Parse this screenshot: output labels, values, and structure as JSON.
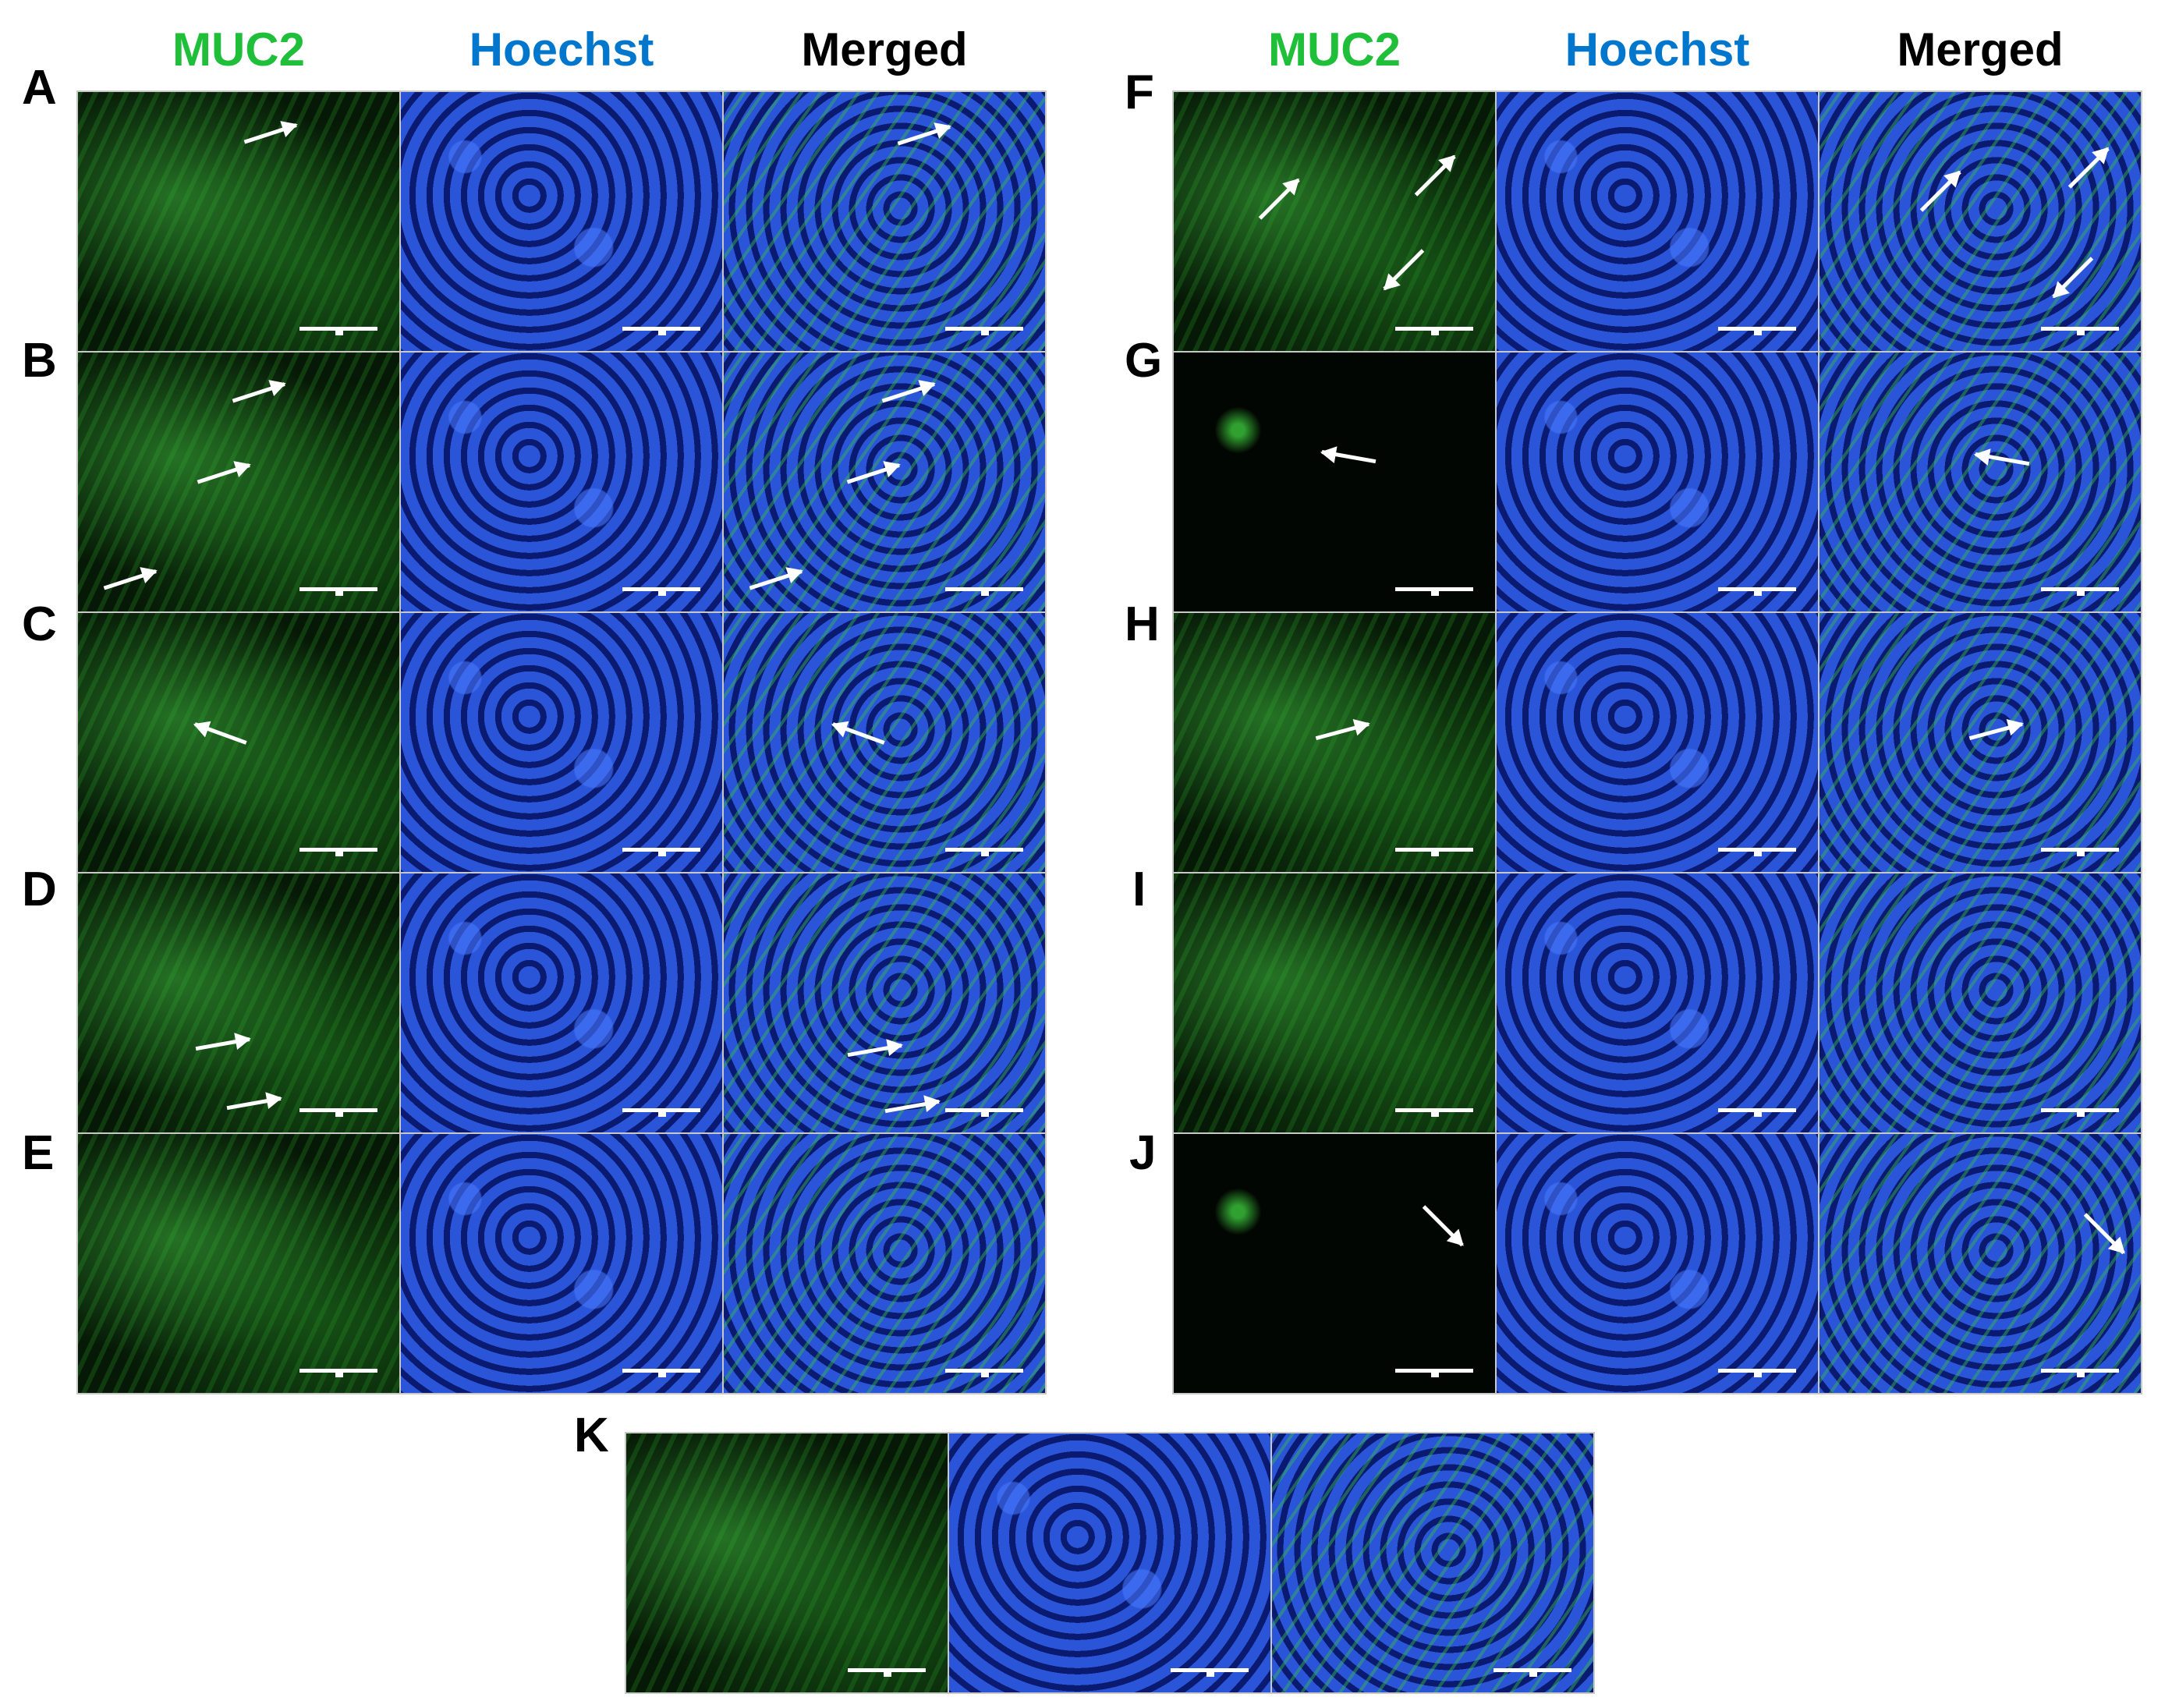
{
  "headers": {
    "left": [
      "MUC2",
      "Hoechst",
      "Merged"
    ],
    "right": [
      "MUC2",
      "Hoechst",
      "Merged"
    ]
  },
  "colors": {
    "muc2": "#1fbf3a",
    "hoechst": "#0077cc",
    "merged": "#000000",
    "scalebar": "#ffffff"
  },
  "rows": {
    "A": "A",
    "B": "B",
    "C": "C",
    "D": "D",
    "E": "E",
    "F": "F",
    "G": "G",
    "H": "H",
    "I": "I",
    "J": "J",
    "K": "K"
  }
}
